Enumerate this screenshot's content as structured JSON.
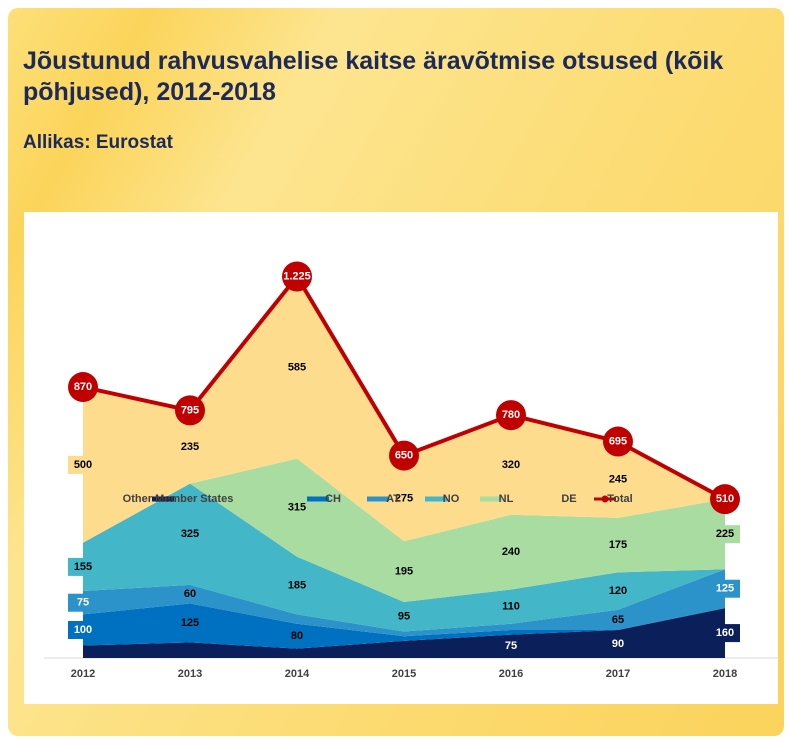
{
  "chart_data": {
    "type": "stacked-area",
    "title": "Jõustunud rahvusvahelise kaitse äravõtmise otsused (kõik põhjused), 2012-2018",
    "source": "Allikas: Eurostat",
    "categories": [
      "2012",
      "2013",
      "2014",
      "2015",
      "2016",
      "2017",
      "2018"
    ],
    "ylim": [
      0,
      1400
    ],
    "grid": false,
    "legend": "bottom",
    "series": [
      {
        "name": "Other Member States",
        "color": "#0b1f5a",
        "values": [
          40,
          50,
          30,
          55,
          75,
          90,
          160
        ],
        "value_labels": [
          null,
          null,
          null,
          null,
          "75",
          "90",
          "160"
        ]
      },
      {
        "name": "CH",
        "color": "#0070c0",
        "values": [
          100,
          125,
          80,
          15,
          15,
          0,
          0
        ],
        "value_labels": [
          "100",
          "125",
          "80",
          null,
          null,
          null,
          null
        ]
      },
      {
        "name": "AT",
        "color": "#2b93c9",
        "values": [
          75,
          60,
          30,
          15,
          20,
          65,
          125
        ],
        "value_labels": [
          "75",
          "60",
          null,
          null,
          null,
          "65",
          "125"
        ]
      },
      {
        "name": "NO",
        "color": "#43b6c8",
        "values": [
          155,
          325,
          185,
          95,
          110,
          120,
          0
        ],
        "value_labels": [
          "155",
          "325",
          "185",
          "95",
          "110",
          "120",
          null
        ]
      },
      {
        "name": "NL",
        "color": "#a9dca0",
        "values": [
          0,
          0,
          315,
          195,
          240,
          175,
          225
        ],
        "value_labels": [
          null,
          null,
          "315",
          "195",
          "240",
          "175",
          "225"
        ]
      },
      {
        "name": "DE",
        "color": "#fddc8e",
        "values": [
          500,
          235,
          585,
          275,
          320,
          245,
          0
        ],
        "value_labels": [
          "500",
          "235",
          "585",
          "275",
          "320",
          "245",
          null
        ]
      }
    ],
    "total": {
      "name": "Total",
      "color": "#c00000",
      "values": [
        870,
        795,
        1225,
        650,
        780,
        695,
        510
      ],
      "value_labels": [
        "870",
        "795",
        "1.225",
        "650",
        "780",
        "695",
        "510"
      ]
    }
  }
}
